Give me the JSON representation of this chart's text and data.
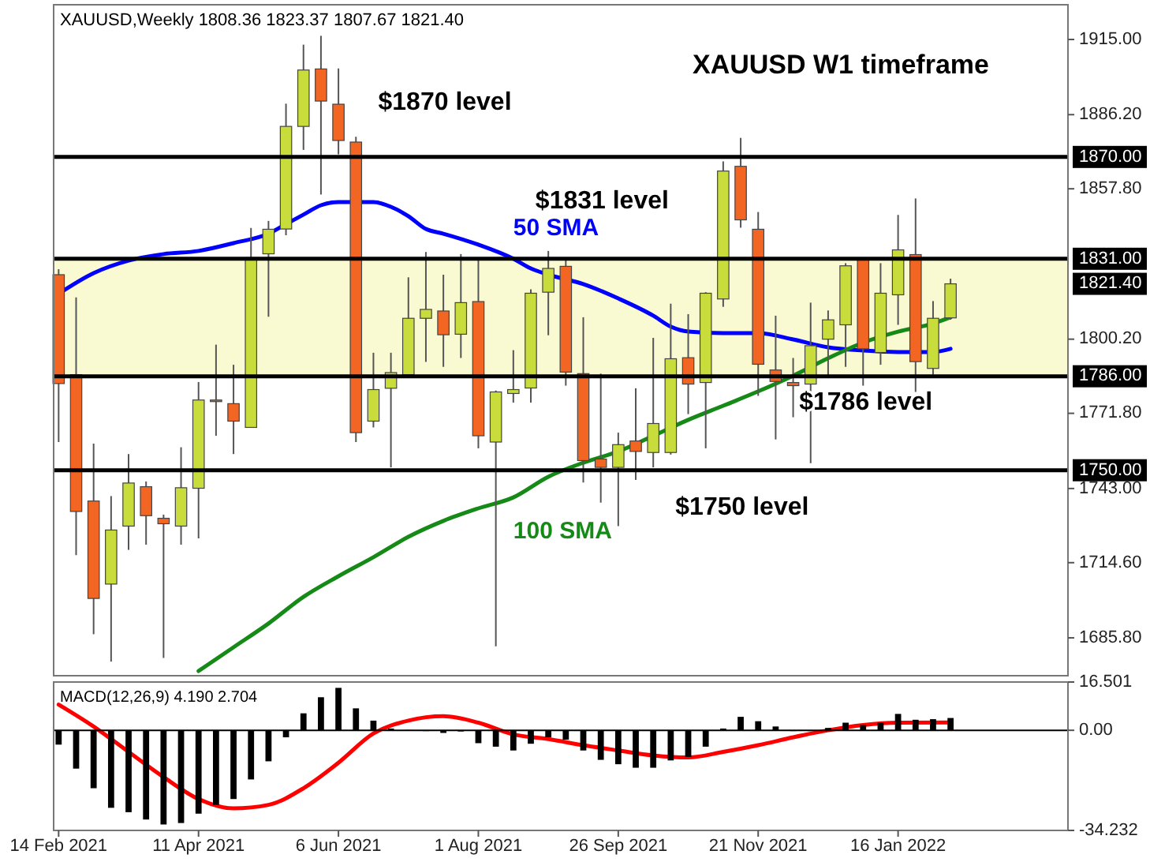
{
  "chart_data": [
    {
      "type": "candlestick",
      "title": "XAUUSD W1 timeframe",
      "subtitle": "XAUUSD,Weekly 1808.36 1823.37 1807.67 1821.40",
      "tick_labels": "y",
      "x": [
        "2021-02-14",
        "2021-02-21",
        "2021-02-28",
        "2021-03-07",
        "2021-03-14",
        "2021-03-21",
        "2021-03-28",
        "2021-04-04",
        "2021-04-11",
        "2021-04-18",
        "2021-04-25",
        "2021-05-02",
        "2021-05-09",
        "2021-05-16",
        "2021-05-23",
        "2021-05-30",
        "2021-06-06",
        "2021-06-13",
        "2021-06-20",
        "2021-06-27",
        "2021-07-04",
        "2021-07-11",
        "2021-07-18",
        "2021-07-25",
        "2021-08-01",
        "2021-08-08",
        "2021-08-15",
        "2021-08-22",
        "2021-08-29",
        "2021-09-05",
        "2021-09-12",
        "2021-09-19",
        "2021-09-26",
        "2021-10-03",
        "2021-10-10",
        "2021-10-17",
        "2021-10-24",
        "2021-10-31",
        "2021-11-07",
        "2021-11-14",
        "2021-11-21",
        "2021-11-28",
        "2021-12-05",
        "2021-12-12",
        "2021-12-19",
        "2021-12-26",
        "2022-01-02",
        "2022-01-09",
        "2022-01-16",
        "2022-01-23",
        "2022-01-30",
        "2022-02-06"
      ],
      "ohlc": [
        [
          1824.9,
          1827,
          1760.8,
          1783.2
        ],
        [
          1786.6,
          1816.2,
          1717.5,
          1734.2
        ],
        [
          1738.2,
          1760.2,
          1687.2,
          1700.9
        ],
        [
          1706.4,
          1740.1,
          1676.7,
          1727.1
        ],
        [
          1728.6,
          1756.2,
          1719.5,
          1745.1
        ],
        [
          1743.7,
          1745.7,
          1721.5,
          1732.6
        ],
        [
          1731.6,
          1733,
          1678.1,
          1729.5
        ],
        [
          1728.6,
          1758.8,
          1721.5,
          1743.3
        ],
        [
          1743.1,
          1783.8,
          1723.9,
          1776.9
        ],
        [
          1776.9,
          1798.1,
          1763.2,
          1776.3
        ],
        [
          1775.5,
          1790.4,
          1756.2,
          1768.8
        ],
        [
          1766.4,
          1842.8,
          1766.4,
          1831.4
        ],
        [
          1832.9,
          1845.5,
          1808.8,
          1842.3
        ],
        [
          1842.4,
          1890.4,
          1840,
          1881.7
        ],
        [
          1881.7,
          1913,
          1872.7,
          1903.3
        ],
        [
          1903.7,
          1916.4,
          1855.6,
          1891.4
        ],
        [
          1890.2,
          1903.9,
          1871,
          1876.3
        ],
        [
          1875.7,
          1877.7,
          1760.8,
          1764.4
        ],
        [
          1768.8,
          1795,
          1766.4,
          1780.9
        ],
        [
          1781.4,
          1795,
          1751.1,
          1787.4
        ],
        [
          1786.6,
          1823.9,
          1786,
          1808.2
        ],
        [
          1808.2,
          1833.6,
          1791.5,
          1811.6
        ],
        [
          1811,
          1824.9,
          1789.6,
          1801.9
        ],
        [
          1802.1,
          1832.8,
          1793,
          1814.2
        ],
        [
          1814.6,
          1831.4,
          1758.4,
          1763.2
        ],
        [
          1760.8,
          1780.5,
          1682.6,
          1780
        ],
        [
          1779.4,
          1796,
          1775.9,
          1780.9
        ],
        [
          1781.5,
          1819.3,
          1775.9,
          1817.8
        ],
        [
          1818.2,
          1834,
          1801.7,
          1827.3
        ],
        [
          1828.1,
          1831.4,
          1782.4,
          1787.6
        ],
        [
          1787,
          1808.6,
          1745.3,
          1753.7
        ],
        [
          1754.3,
          1787,
          1737.6,
          1751.1
        ],
        [
          1751.1,
          1764.4,
          1728.6,
          1759.8
        ],
        [
          1761.2,
          1781.4,
          1746.3,
          1757.2
        ],
        [
          1756.8,
          1800.7,
          1751.1,
          1767.9
        ],
        [
          1756.8,
          1813.8,
          1756,
          1792.7
        ],
        [
          1793.1,
          1809.8,
          1771.5,
          1783
        ],
        [
          1783.6,
          1818.2,
          1758.4,
          1817.8
        ],
        [
          1815.6,
          1868.3,
          1812.6,
          1864.6
        ],
        [
          1866.4,
          1877.3,
          1842.9,
          1845.9
        ],
        [
          1842.3,
          1848.9,
          1778.5,
          1790.6
        ],
        [
          1788.4,
          1809.2,
          1761.8,
          1784
        ],
        [
          1783.6,
          1793,
          1770.3,
          1782.4
        ],
        [
          1783,
          1814.2,
          1752.7,
          1797.7
        ],
        [
          1800.2,
          1811.2,
          1785.4,
          1807.6
        ],
        [
          1805.7,
          1829.3,
          1789.6,
          1828.3
        ],
        [
          1830.9,
          1831.2,
          1782.4,
          1796.5
        ],
        [
          1795.1,
          1829.3,
          1790.4,
          1817.8
        ],
        [
          1817.2,
          1847.8,
          1805.7,
          1834.4
        ],
        [
          1832.6,
          1854.1,
          1780,
          1791.6
        ],
        [
          1789,
          1814.8,
          1786.6,
          1808.2
        ],
        [
          1808.36,
          1823.37,
          1807.67,
          1821.4
        ]
      ],
      "colors": [
        "#f26522",
        "#f26522",
        "#f26522",
        "#c8dc3c",
        "#c8dc3c",
        "#f26522",
        "#f26522",
        "#c8dc3c",
        "#c8dc3c",
        "#f26522",
        "#f26522",
        "#c8dc3c",
        "#c8dc3c",
        "#c8dc3c",
        "#c8dc3c",
        "#f26522",
        "#f26522",
        "#f26522",
        "#c8dc3c",
        "#c8dc3c",
        "#c8dc3c",
        "#c8dc3c",
        "#f26522",
        "#c8dc3c",
        "#f26522",
        "#c8dc3c",
        "#c8dc3c",
        "#c8dc3c",
        "#c8dc3c",
        "#f26522",
        "#f26522",
        "#f26522",
        "#c8dc3c",
        "#f26522",
        "#c8dc3c",
        "#c8dc3c",
        "#f26522",
        "#c8dc3c",
        "#c8dc3c",
        "#f26522",
        "#f26522",
        "#f26522",
        "#f26522",
        "#c8dc3c",
        "#c8dc3c",
        "#c8dc3c",
        "#f26522",
        "#c8dc3c",
        "#c8dc3c",
        "#f26522",
        "#c8dc3c",
        "#c8dc3c"
      ],
      "series": [
        {
          "type": "line",
          "name": "50 SMA",
          "color": "#0000ff",
          "x": [
            "2021-02-14",
            "2021-02-28",
            "2021-03-14",
            "2021-03-28",
            "2021-04-11",
            "2021-04-25",
            "2021-05-09",
            "2021-05-16",
            "2021-05-23",
            "2021-05-30",
            "2021-06-06",
            "2021-06-13",
            "2021-06-20",
            "2021-06-27",
            "2021-07-04",
            "2021-07-11",
            "2021-07-18",
            "2021-08-01",
            "2021-08-15",
            "2021-08-22",
            "2021-08-29",
            "2021-09-12",
            "2021-09-26",
            "2021-10-10",
            "2021-10-17",
            "2021-10-24",
            "2021-11-07",
            "2021-11-21",
            "2021-12-05",
            "2021-12-19",
            "2022-01-02",
            "2022-01-16",
            "2022-01-30",
            "2022-02-06"
          ],
          "values": [
            1817.6,
            1825.5,
            1830.3,
            1832.8,
            1834.0,
            1837.0,
            1840.6,
            1844.3,
            1847.9,
            1851.5,
            1852.7,
            1852.7,
            1852.7,
            1850.9,
            1847.3,
            1842.4,
            1840.6,
            1836.4,
            1831.0,
            1827.3,
            1824.9,
            1821.3,
            1815.8,
            1809.2,
            1805.0,
            1803.1,
            1802.5,
            1802.5,
            1800.1,
            1797.1,
            1795.9,
            1795.3,
            1795.3,
            1796.5
          ]
        },
        {
          "type": "line",
          "name": "100 SMA",
          "color": "#168a16",
          "x": [
            "2021-04-11",
            "2021-04-25",
            "2021-05-09",
            "2021-05-23",
            "2021-06-06",
            "2021-06-20",
            "2021-07-04",
            "2021-07-18",
            "2021-08-01",
            "2021-08-15",
            "2021-08-29",
            "2021-09-12",
            "2021-09-26",
            "2021-10-10",
            "2021-10-24",
            "2021-11-07",
            "2021-11-21",
            "2021-12-05",
            "2021-12-19",
            "2022-01-02",
            "2022-01-16",
            "2022-01-30",
            "2022-02-06"
          ],
          "values": [
            1673.1,
            1682.2,
            1691.3,
            1701.5,
            1709.4,
            1716.7,
            1724.5,
            1730.6,
            1735.4,
            1739.6,
            1747.5,
            1752.9,
            1757.2,
            1763.2,
            1769.3,
            1774.7,
            1780.2,
            1786.2,
            1792.9,
            1798.9,
            1803.1,
            1806.2,
            1808.6
          ]
        }
      ],
      "xlim": [
        "2021-02-12",
        "2022-03-25"
      ],
      "ylim": [
        1671.3,
        1928.3
      ],
      "yticks": [
        {
          "value": 1915,
          "label": "1915.00"
        },
        {
          "value": 1886.2,
          "label": "1886.20"
        },
        {
          "value": 1857.8,
          "label": "1857.80"
        },
        {
          "value": 1800.2,
          "label": "1800.20"
        },
        {
          "value": 1771.8,
          "label": "1771.80"
        },
        {
          "value": 1743,
          "label": "1743.00"
        },
        {
          "value": 1714.6,
          "label": "1714.60"
        },
        {
          "value": 1685.8,
          "label": "1685.80"
        }
      ],
      "bands": [
        {
          "axis": "y",
          "from": 1786,
          "to": 1831,
          "color": "#fafad2"
        }
      ],
      "ref_lines": [
        {
          "axis": "y",
          "value": 1870,
          "label": "1870.00",
          "color": "#000000"
        },
        {
          "axis": "y",
          "value": 1831,
          "label": "1831.00",
          "color": "#000000"
        },
        {
          "axis": "y",
          "value": 1786,
          "label": "1786.00",
          "color": "#000000"
        },
        {
          "axis": "y",
          "value": 1750,
          "label": "1750.00",
          "color": "#000000"
        }
      ],
      "annotations": [
        "$1870 level",
        "$1831 level",
        "$1786 level",
        "$1750 level",
        "1821.40"
      ]
    },
    {
      "type": "bar",
      "title": "MACD(12,26,9) 4.190 2.704",
      "x": [
        "2021-02-14",
        "2021-02-21",
        "2021-02-28",
        "2021-03-07",
        "2021-03-14",
        "2021-03-21",
        "2021-03-28",
        "2021-04-04",
        "2021-04-11",
        "2021-04-18",
        "2021-04-25",
        "2021-05-02",
        "2021-05-09",
        "2021-05-16",
        "2021-05-23",
        "2021-05-30",
        "2021-06-06",
        "2021-06-13",
        "2021-06-20",
        "2021-06-27",
        "2021-07-04",
        "2021-07-11",
        "2021-07-18",
        "2021-07-25",
        "2021-08-01",
        "2021-08-08",
        "2021-08-15",
        "2021-08-22",
        "2021-08-29",
        "2021-09-05",
        "2021-09-12",
        "2021-09-19",
        "2021-09-26",
        "2021-10-03",
        "2021-10-10",
        "2021-10-17",
        "2021-10-24",
        "2021-10-31",
        "2021-11-07",
        "2021-11-14",
        "2021-11-21",
        "2021-11-28",
        "2021-12-05",
        "2021-12-12",
        "2021-12-19",
        "2021-12-26",
        "2022-01-02",
        "2022-01-09",
        "2022-01-16",
        "2022-01-23",
        "2022-01-30",
        "2022-02-06"
      ],
      "series": [
        {
          "type": "bar",
          "color": "#000000",
          "values": [
            -4.9,
            -13.1,
            -19.8,
            -26.5,
            -28.0,
            -30.5,
            -32.2,
            -31.7,
            -28.5,
            -25.5,
            -23.5,
            -16.8,
            -10.6,
            -2.4,
            5.8,
            11.3,
            14.5,
            7.5,
            3.3,
            0.6,
            0.1,
            0,
            -0.9,
            -0.4,
            -4.4,
            -5.6,
            -6.9,
            -4.6,
            -2.4,
            -3.2,
            -6.9,
            -10.1,
            -11.6,
            -12.8,
            -12.8,
            -10.3,
            -9.1,
            -5.6,
            0.6,
            4.6,
            3.1,
            1.3,
            0,
            0,
            0.8,
            2.6,
            1.8,
            2.6,
            5.6,
            3.6,
            3.8,
            4.2
          ]
        },
        {
          "type": "line",
          "color": "#ff0000",
          "x": [
            "2021-02-14",
            "2021-02-28",
            "2021-03-14",
            "2021-03-28",
            "2021-04-11",
            "2021-04-25",
            "2021-05-09",
            "2021-05-23",
            "2021-06-06",
            "2021-06-20",
            "2021-07-04",
            "2021-07-18",
            "2021-08-01",
            "2021-08-15",
            "2021-08-29",
            "2021-09-12",
            "2021-09-26",
            "2021-10-10",
            "2021-10-24",
            "2021-11-07",
            "2021-11-21",
            "2021-12-05",
            "2021-12-19",
            "2022-01-02",
            "2022-01-16",
            "2022-02-06"
          ],
          "values": [
            8.8,
            1.3,
            -7.4,
            -16.0,
            -23.5,
            -26.7,
            -25.5,
            -19.8,
            -11.1,
            -1.1,
            3.3,
            4.8,
            2.6,
            -1.4,
            -3.0,
            -5.1,
            -6.9,
            -8.6,
            -9.3,
            -7.4,
            -5.1,
            -2.4,
            0,
            1.8,
            2.6,
            2.7
          ]
        }
      ],
      "xlim": [
        "2021-02-12",
        "2022-03-25"
      ],
      "xticks": [
        {
          "value": "2021-02-14",
          "label": "14 Feb 2021"
        },
        {
          "value": "2021-04-11",
          "label": "11 Apr 2021"
        },
        {
          "value": "2021-06-06",
          "label": "6 Jun 2021"
        },
        {
          "value": "2021-08-01",
          "label": "1 Aug 2021"
        },
        {
          "value": "2021-09-26",
          "label": "26 Sep 2021"
        },
        {
          "value": "2021-11-21",
          "label": "21 Nov 2021"
        },
        {
          "value": "2022-01-16",
          "label": "16 Jan 2022"
        }
      ],
      "ylim": [
        -34.232,
        16.501
      ],
      "yticks": [
        16.501,
        {
          "value": 0,
          "label": "0.00"
        },
        -34.232
      ]
    }
  ]
}
